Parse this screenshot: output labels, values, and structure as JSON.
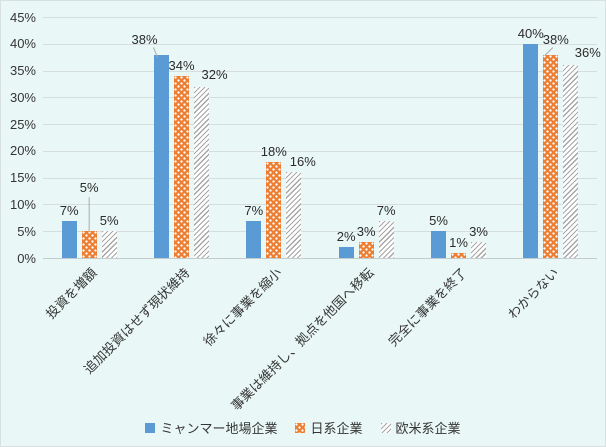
{
  "chart_data": {
    "type": "bar",
    "title": "",
    "categories": [
      "投資を増額",
      "追加投資はせず現状維持",
      "徐々に事業を縮小",
      "事業は維持し、拠点を他国へ移転",
      "完全に事業を終了",
      "わからない"
    ],
    "series": [
      {
        "name": "ミャンマー地場企業",
        "values": [
          7,
          38,
          7,
          2,
          5,
          40
        ],
        "labels": [
          "7%",
          "38%",
          "7%",
          "2%",
          "5%",
          "40%"
        ],
        "color": "#5B9BD5",
        "pattern": "solid"
      },
      {
        "name": "日系企業",
        "values": [
          5,
          34,
          18,
          3,
          1,
          38
        ],
        "labels": [
          "5%",
          "34%",
          "18%",
          "3%",
          "1%",
          "38%"
        ],
        "color": "#ED7D31",
        "pattern": "white-dots",
        "dot_color": "#FFFFFF"
      },
      {
        "name": "欧米系企業",
        "values": [
          5,
          32,
          16,
          7,
          3,
          36
        ],
        "labels": [
          "5%",
          "32%",
          "16%",
          "7%",
          "3%",
          "36%"
        ],
        "color": "#A6A6A6",
        "pattern": "diagonal-hatch",
        "hatch_background": "#FFFFFF"
      }
    ],
    "y_axis": {
      "min": 0,
      "max": 45,
      "step": 5,
      "tick_labels": [
        "0%",
        "5%",
        "10%",
        "15%",
        "20%",
        "25%",
        "30%",
        "35%",
        "40%",
        "45%"
      ]
    },
    "legend": {
      "position": "bottom"
    },
    "grid": true,
    "background_color": "#E9F8F6",
    "gridline_color": "#D5DDDD",
    "leader_line_color": "#A9A9A9",
    "label_adjustments": {
      "1,0": {
        "dx": 0,
        "dy": -33,
        "leader": "vertical"
      },
      "0,1": {
        "dx": -17,
        "dy": -5,
        "leader": "diag-right"
      },
      "2,1": {
        "dx": 13,
        "dy": -2
      },
      "2,2": {
        "dx": 9,
        "dy": 0
      },
      "1,5": {
        "dx": 5,
        "dy": -5,
        "leader": "diag-left"
      },
      "2,5": {
        "dx": 17,
        "dy": -2
      }
    }
  }
}
